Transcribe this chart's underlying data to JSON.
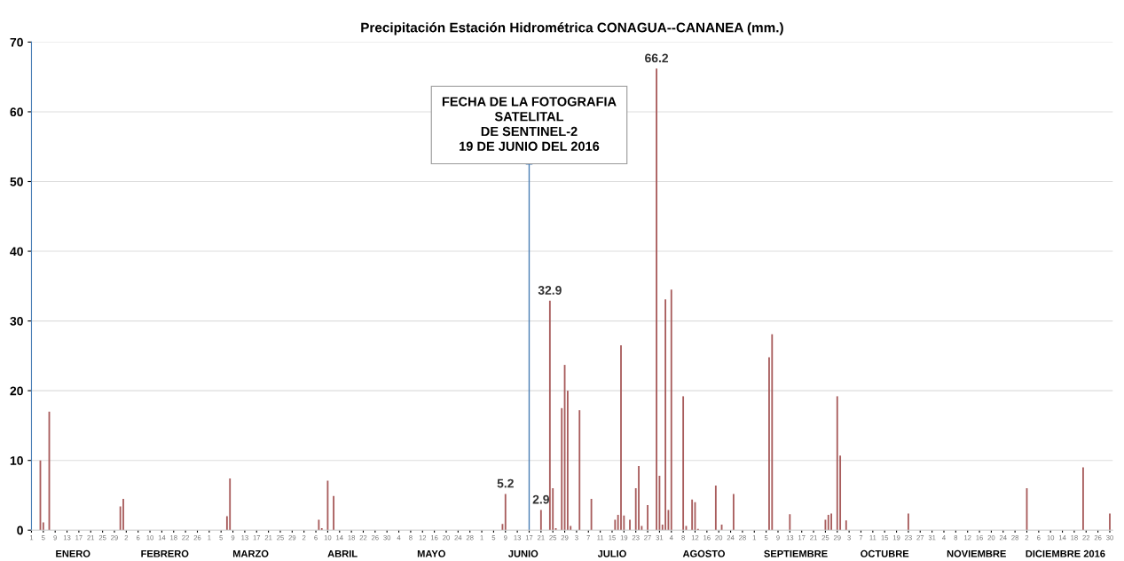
{
  "chart_data": {
    "type": "bar",
    "title": "Precipitación Estación Hidrométrica CONAGUA--CANANEA (mm.)",
    "x": [
      "2016-01-04",
      "2016-01-05",
      "2016-01-07",
      "2016-01-31",
      "2016-02-01",
      "2016-03-07",
      "2016-03-08",
      "2016-04-07",
      "2016-04-08",
      "2016-04-10",
      "2016-04-12",
      "2016-06-08",
      "2016-06-09",
      "2016-06-21",
      "2016-06-24",
      "2016-06-25",
      "2016-06-26",
      "2016-06-28",
      "2016-06-29",
      "2016-06-30",
      "2016-07-01",
      "2016-07-04",
      "2016-07-08",
      "2016-07-16",
      "2016-07-17",
      "2016-07-18",
      "2016-07-19",
      "2016-07-21",
      "2016-07-23",
      "2016-07-24",
      "2016-07-25",
      "2016-07-27",
      "2016-07-30",
      "2016-07-31",
      "2016-08-01",
      "2016-08-02",
      "2016-08-03",
      "2016-08-04",
      "2016-08-08",
      "2016-08-09",
      "2016-08-11",
      "2016-08-12",
      "2016-08-13",
      "2016-08-19",
      "2016-08-21",
      "2016-08-25",
      "2016-09-06",
      "2016-09-07",
      "2016-09-13",
      "2016-09-25",
      "2016-09-26",
      "2016-09-27",
      "2016-09-29",
      "2016-09-30",
      "2016-10-02",
      "2016-10-23",
      "2016-12-02",
      "2016-12-21",
      "2016-12-30"
    ],
    "values": [
      10.0,
      1.1,
      17.0,
      3.4,
      4.5,
      2.0,
      7.4,
      1.5,
      0.3,
      7.1,
      4.9,
      0.9,
      5.2,
      2.9,
      32.9,
      6.0,
      0.3,
      17.5,
      23.7,
      20.0,
      0.6,
      17.2,
      4.5,
      1.5,
      2.2,
      26.5,
      2.1,
      1.5,
      6.0,
      9.2,
      0.6,
      3.6,
      66.2,
      7.8,
      0.8,
      33.1,
      2.9,
      34.5,
      19.2,
      0.6,
      4.4,
      4.0,
      0.2,
      6.4,
      0.8,
      5.2,
      24.8,
      28.1,
      2.3,
      1.5,
      2.2,
      2.4,
      19.2,
      10.7,
      1.4,
      2.4,
      6.0,
      9.0,
      2.4
    ],
    "value_labels": [
      null,
      null,
      null,
      null,
      null,
      null,
      null,
      null,
      null,
      null,
      null,
      null,
      "5.2",
      "2.9",
      "32.9",
      null,
      null,
      null,
      null,
      null,
      null,
      null,
      null,
      null,
      null,
      null,
      null,
      null,
      null,
      null,
      null,
      null,
      "66.2",
      null,
      null,
      null,
      null,
      null,
      null,
      null,
      null,
      null,
      null,
      null,
      null,
      null,
      null,
      null,
      null,
      null,
      null,
      null,
      null,
      null,
      null,
      null,
      null,
      null,
      null
    ],
    "color": "#a85c5c",
    "ylim": [
      0,
      70
    ],
    "yticks": [
      0,
      10,
      20,
      30,
      40,
      50,
      60,
      70
    ],
    "xlim": [
      "2016-01-01",
      "2016-12-31"
    ],
    "xticks": [
      {
        "value": "2016-01-01",
        "label": "1"
      },
      {
        "value": "2016-01-05",
        "label": "5"
      },
      {
        "value": "2016-01-09",
        "label": "9"
      },
      {
        "value": "2016-01-13",
        "label": "13"
      },
      {
        "value": "2016-01-17",
        "label": "17"
      },
      {
        "value": "2016-01-21",
        "label": "21"
      },
      {
        "value": "2016-01-25",
        "label": "25"
      },
      {
        "value": "2016-01-29",
        "label": "29"
      },
      {
        "value": "2016-02-02",
        "label": "2"
      },
      {
        "value": "2016-02-06",
        "label": "6"
      },
      {
        "value": "2016-02-10",
        "label": "10"
      },
      {
        "value": "2016-02-14",
        "label": "14"
      },
      {
        "value": "2016-02-18",
        "label": "18"
      },
      {
        "value": "2016-02-22",
        "label": "22"
      },
      {
        "value": "2016-02-26",
        "label": "26"
      },
      {
        "value": "2016-03-01",
        "label": "1"
      },
      {
        "value": "2016-03-05",
        "label": "5"
      },
      {
        "value": "2016-03-09",
        "label": "9"
      },
      {
        "value": "2016-03-13",
        "label": "13"
      },
      {
        "value": "2016-03-17",
        "label": "17"
      },
      {
        "value": "2016-03-21",
        "label": "21"
      },
      {
        "value": "2016-03-25",
        "label": "25"
      },
      {
        "value": "2016-03-29",
        "label": "29"
      },
      {
        "value": "2016-04-02",
        "label": "2"
      },
      {
        "value": "2016-04-06",
        "label": "6"
      },
      {
        "value": "2016-04-10",
        "label": "10"
      },
      {
        "value": "2016-04-14",
        "label": "14"
      },
      {
        "value": "2016-04-18",
        "label": "18"
      },
      {
        "value": "2016-04-22",
        "label": "22"
      },
      {
        "value": "2016-04-26",
        "label": "26"
      },
      {
        "value": "2016-04-30",
        "label": "30"
      },
      {
        "value": "2016-05-04",
        "label": "4"
      },
      {
        "value": "2016-05-08",
        "label": "8"
      },
      {
        "value": "2016-05-12",
        "label": "12"
      },
      {
        "value": "2016-05-16",
        "label": "16"
      },
      {
        "value": "2016-05-20",
        "label": "20"
      },
      {
        "value": "2016-05-24",
        "label": "24"
      },
      {
        "value": "2016-05-28",
        "label": "28"
      },
      {
        "value": "2016-06-01",
        "label": "1"
      },
      {
        "value": "2016-06-05",
        "label": "5"
      },
      {
        "value": "2016-06-09",
        "label": "9"
      },
      {
        "value": "2016-06-13",
        "label": "13"
      },
      {
        "value": "2016-06-17",
        "label": "17"
      },
      {
        "value": "2016-06-21",
        "label": "21"
      },
      {
        "value": "2016-06-25",
        "label": "25"
      },
      {
        "value": "2016-06-29",
        "label": "29"
      },
      {
        "value": "2016-07-03",
        "label": "3"
      },
      {
        "value": "2016-07-07",
        "label": "7"
      },
      {
        "value": "2016-07-11",
        "label": "11"
      },
      {
        "value": "2016-07-15",
        "label": "15"
      },
      {
        "value": "2016-07-19",
        "label": "19"
      },
      {
        "value": "2016-07-23",
        "label": "23"
      },
      {
        "value": "2016-07-27",
        "label": "27"
      },
      {
        "value": "2016-07-31",
        "label": "31"
      },
      {
        "value": "2016-08-04",
        "label": "4"
      },
      {
        "value": "2016-08-08",
        "label": "8"
      },
      {
        "value": "2016-08-12",
        "label": "12"
      },
      {
        "value": "2016-08-16",
        "label": "16"
      },
      {
        "value": "2016-08-20",
        "label": "20"
      },
      {
        "value": "2016-08-24",
        "label": "24"
      },
      {
        "value": "2016-08-28",
        "label": "28"
      },
      {
        "value": "2016-09-01",
        "label": "1"
      },
      {
        "value": "2016-09-05",
        "label": "5"
      },
      {
        "value": "2016-09-09",
        "label": "9"
      },
      {
        "value": "2016-09-13",
        "label": "13"
      },
      {
        "value": "2016-09-17",
        "label": "17"
      },
      {
        "value": "2016-09-21",
        "label": "21"
      },
      {
        "value": "2016-09-25",
        "label": "25"
      },
      {
        "value": "2016-09-29",
        "label": "29"
      },
      {
        "value": "2016-10-03",
        "label": "3"
      },
      {
        "value": "2016-10-07",
        "label": "7"
      },
      {
        "value": "2016-10-11",
        "label": "11"
      },
      {
        "value": "2016-10-15",
        "label": "15"
      },
      {
        "value": "2016-10-19",
        "label": "19"
      },
      {
        "value": "2016-10-23",
        "label": "23"
      },
      {
        "value": "2016-10-27",
        "label": "27"
      },
      {
        "value": "2016-10-31",
        "label": "31"
      },
      {
        "value": "2016-11-04",
        "label": "4"
      },
      {
        "value": "2016-11-08",
        "label": "8"
      },
      {
        "value": "2016-11-12",
        "label": "12"
      },
      {
        "value": "2016-11-16",
        "label": "16"
      },
      {
        "value": "2016-11-20",
        "label": "20"
      },
      {
        "value": "2016-11-24",
        "label": "24"
      },
      {
        "value": "2016-11-28",
        "label": "28"
      },
      {
        "value": "2016-12-02",
        "label": "2"
      },
      {
        "value": "2016-12-06",
        "label": "6"
      },
      {
        "value": "2016-12-10",
        "label": "10"
      },
      {
        "value": "2016-12-14",
        "label": "14"
      },
      {
        "value": "2016-12-18",
        "label": "18"
      },
      {
        "value": "2016-12-22",
        "label": "22"
      },
      {
        "value": "2016-12-26",
        "label": "26"
      },
      {
        "value": "2016-12-30",
        "label": "30"
      }
    ],
    "grid": "y",
    "ref_lines": [
      {
        "axis": "x",
        "value": "2016-06-17",
        "label": "FECHA DE LA FOTOGRAFIA\nSATELITAL\nDE SENTINEL-2\n19 DE JUNIO DEL 2016",
        "color": "#4a7eb5"
      }
    ],
    "annotations": [
      "ENERO",
      "FEBRERO",
      "MARZO",
      "ABRIL",
      "MAYO",
      "JUNIO",
      "JULIO",
      "AGOSTO",
      "SEPTIEMBRE",
      "OCTUBRE",
      "NOVIEMBRE",
      "DICIEMBRE 2016"
    ]
  }
}
